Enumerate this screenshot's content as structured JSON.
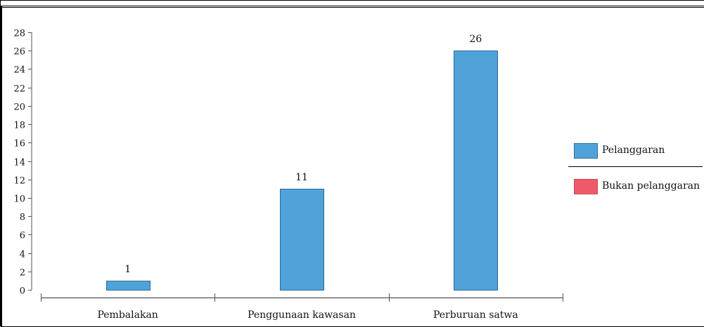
{
  "chart_data": {
    "type": "bar",
    "categories": [
      "Pembalakan",
      "Penggunaan kawasan",
      "Perburuan satwa"
    ],
    "series": [
      {
        "name": "Pelanggaran",
        "values": [
          1,
          11,
          26
        ],
        "color": "#4fa3d9",
        "stroke": "#2a6b9c"
      },
      {
        "name": "Bukan pelanggaran",
        "values": [
          0,
          0,
          0
        ],
        "color": "#ef5a6b",
        "stroke": "#c94b5a"
      }
    ],
    "data_labels": [
      "1",
      "11",
      "26"
    ],
    "ylim": [
      0,
      28
    ],
    "yticks": [
      0,
      2,
      4,
      6,
      8,
      10,
      12,
      14,
      16,
      18,
      20,
      22,
      24,
      26,
      28
    ],
    "xlabel": "",
    "ylabel": "",
    "title": "",
    "grid": false,
    "legend": "right"
  }
}
